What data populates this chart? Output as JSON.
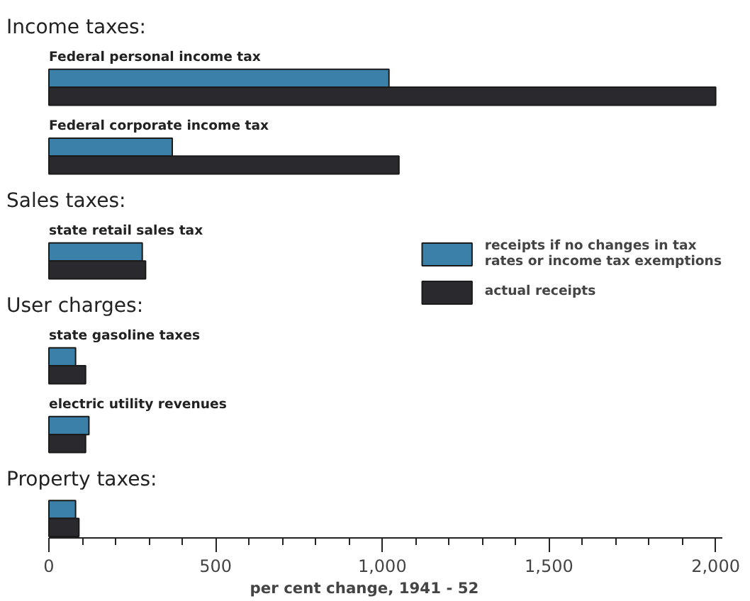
{
  "chart_data": {
    "type": "bar",
    "orientation": "horizontal",
    "xlabel": "per cent change, 1941 - 52",
    "categories": [
      "Federal personal income tax",
      "Federal corporate income tax",
      "state retail sales tax",
      "state gasoline taxes",
      "electric utility revenues",
      null
    ],
    "series": [
      {
        "name": "receipts if no changes in tax rates or income tax exemptions",
        "color": "#3a80a8",
        "values": [
          1020,
          370,
          280,
          80,
          120,
          80
        ]
      },
      {
        "name": "actual receipts",
        "color": "#2a2a2e",
        "values": [
          2000,
          1050,
          290,
          110,
          110,
          90
        ]
      }
    ],
    "annotations": [
      "Income taxes:",
      "Sales taxes:",
      "User charges:",
      "Property taxes:"
    ],
    "xlim": [
      0,
      2020
    ],
    "xticks": [
      0,
      500,
      {
        "value": 1000,
        "label": "1,000"
      },
      {
        "value": 1500,
        "label": "1,500"
      },
      {
        "value": 2000,
        "label": "2,000"
      }
    ],
    "grid": false,
    "legend": "right"
  }
}
